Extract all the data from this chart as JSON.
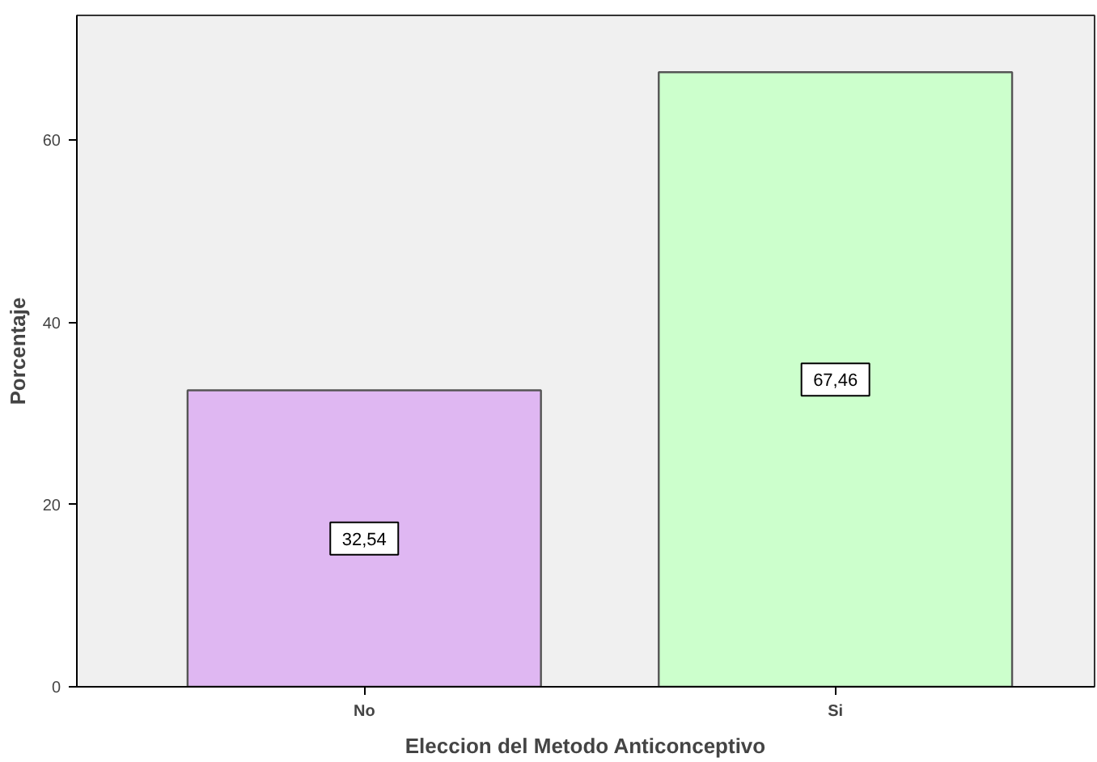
{
  "chart_data": {
    "type": "bar",
    "xlabel": "Eleccion del Metodo Anticonceptivo",
    "ylabel": "Porcentaje",
    "categories": [
      "No",
      "Si"
    ],
    "values": [
      32.54,
      67.46
    ],
    "colors": [
      "#dfb7f2",
      "#ccffcc"
    ],
    "value_labels": [
      "32,54",
      "67,46"
    ],
    "ylim": [
      0,
      73.7
    ],
    "yticks": [
      0,
      20,
      40,
      60
    ],
    "grid": false
  }
}
